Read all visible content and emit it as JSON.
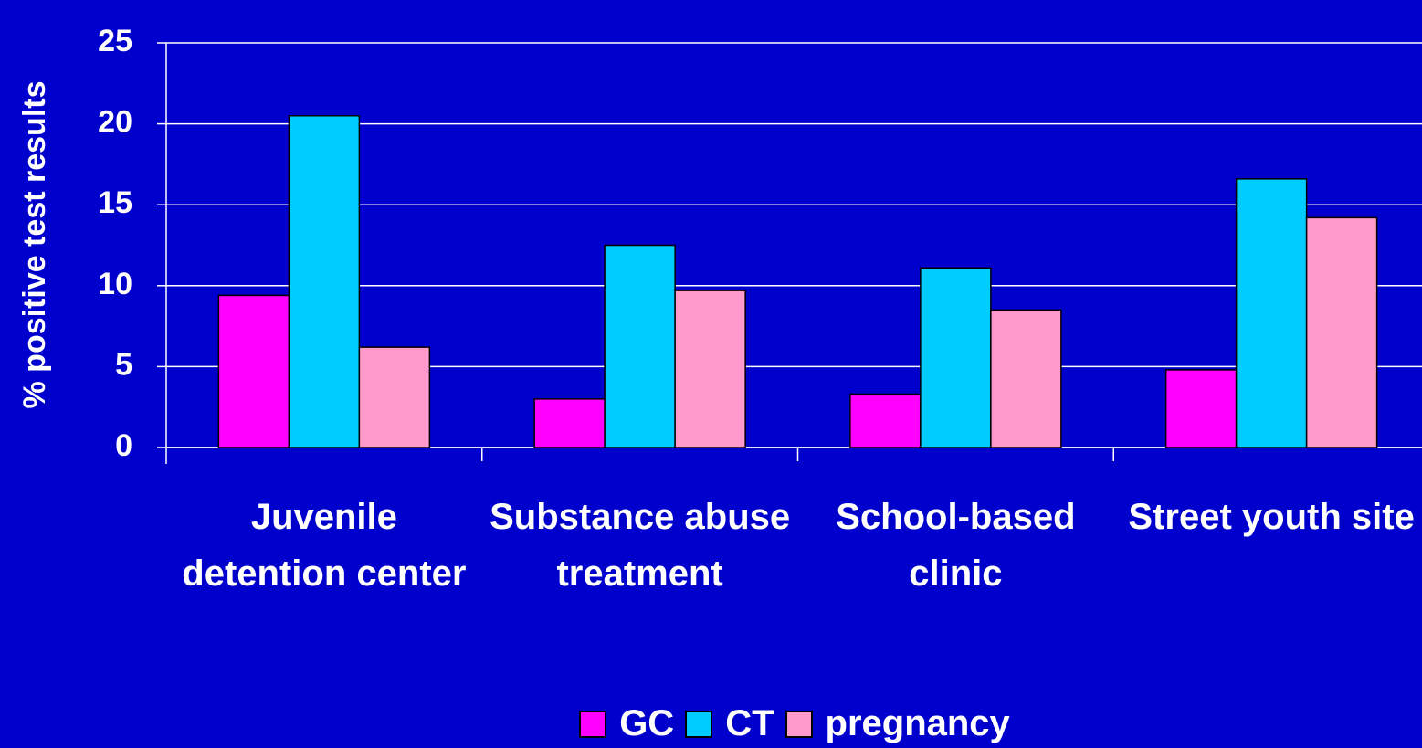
{
  "chart_data": {
    "type": "bar",
    "y_label": "% positive test results",
    "categories": [
      "Juvenile detention center",
      "Substance abuse treatment",
      "School-based clinic",
      "Street youth site"
    ],
    "series": [
      {
        "name": "GC",
        "color": "#ff00ff",
        "values": [
          9.4,
          3.0,
          3.3,
          4.8
        ]
      },
      {
        "name": "CT",
        "color": "#00ccff",
        "values": [
          20.5,
          12.5,
          11.1,
          16.6
        ]
      },
      {
        "name": "pregnancy",
        "color": "#ff99cc",
        "values": [
          6.2,
          9.7,
          8.5,
          14.2
        ]
      }
    ],
    "ylim": [
      0,
      25
    ],
    "yticks": [
      0,
      5,
      10,
      15,
      20,
      25
    ],
    "grid": true,
    "legend": "bottom"
  }
}
